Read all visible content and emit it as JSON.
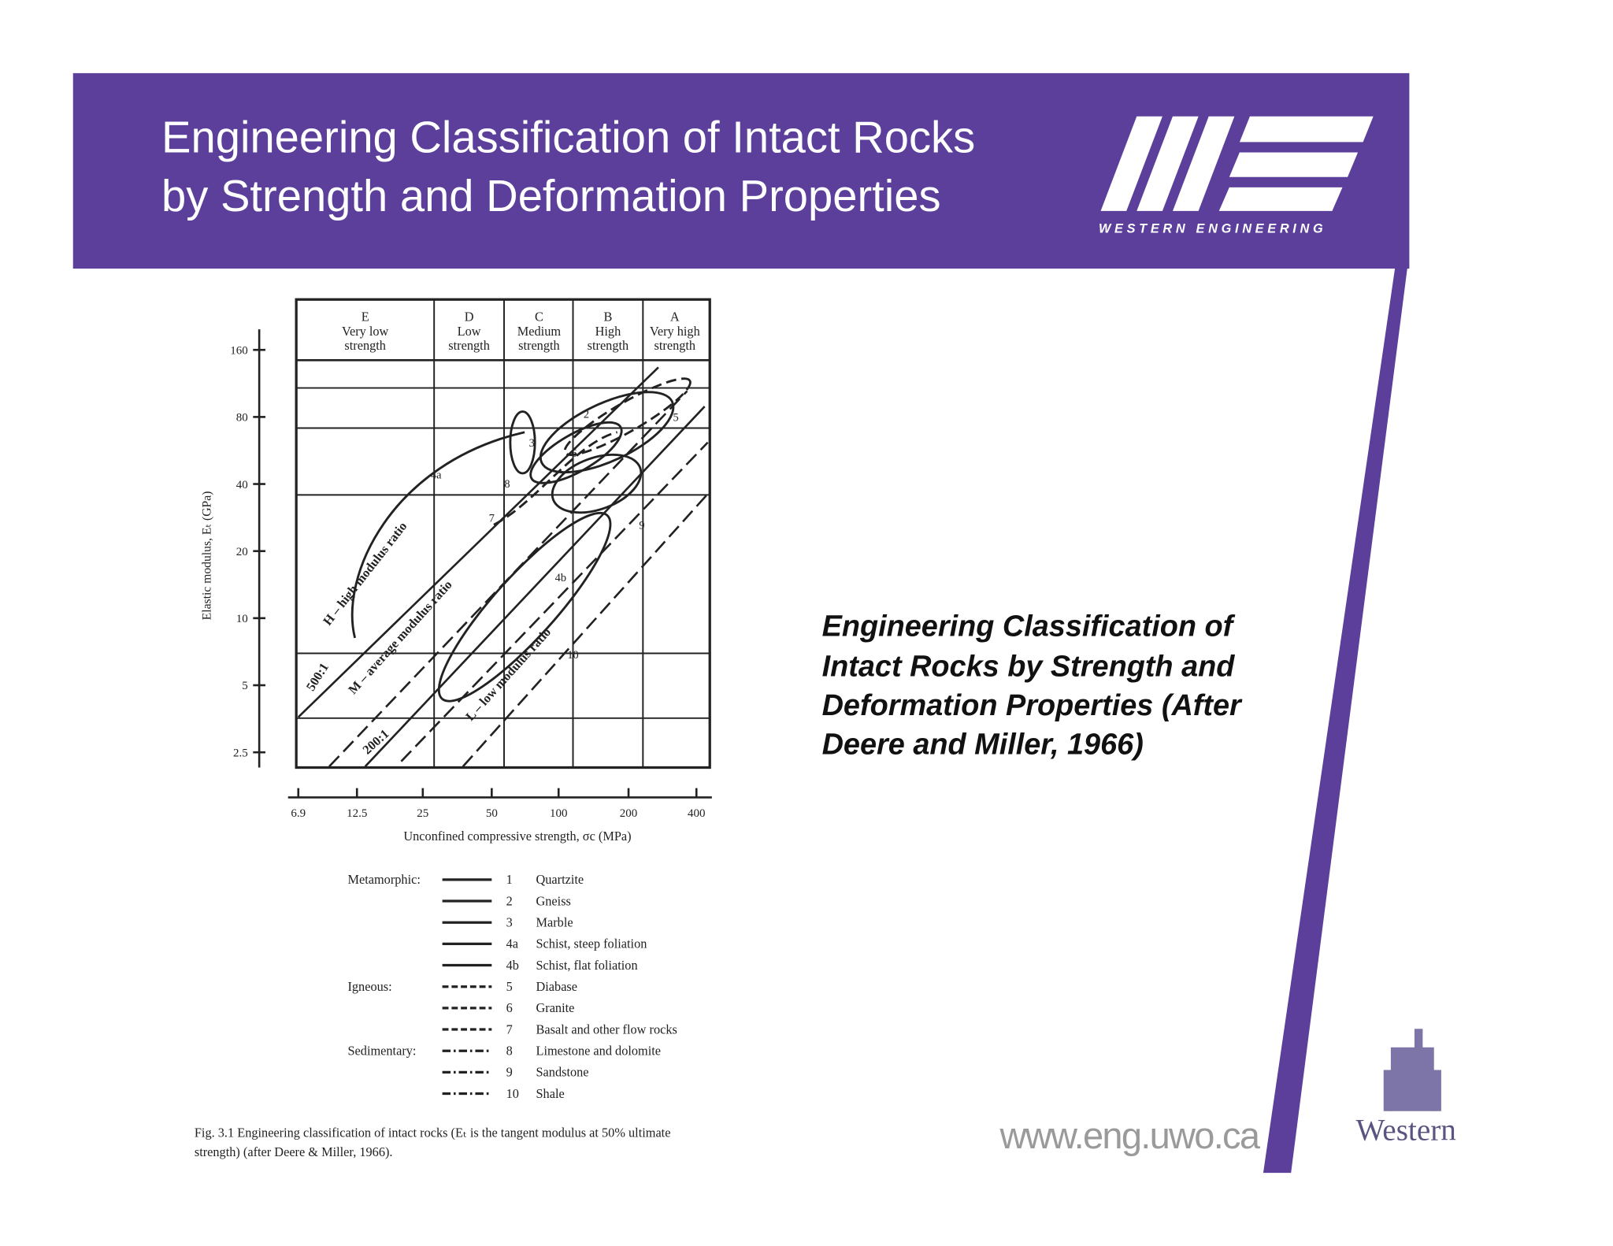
{
  "header": {
    "title": [
      "Engineering Classification of Intact Rocks",
      "by Strength and Deformation Properties"
    ],
    "logo_text": "WESTERN ENGINEERING"
  },
  "figure": {
    "classes": [
      [
        "E",
        "Very low",
        "strength"
      ],
      [
        "D",
        "Low",
        "strength"
      ],
      [
        "C",
        "Medium",
        "strength"
      ],
      [
        "B",
        "High",
        "strength"
      ],
      [
        "A",
        "Very high",
        "strength"
      ]
    ],
    "y_ticks": [
      "160",
      "80",
      "40",
      "20",
      "10",
      "5",
      "2.5"
    ],
    "y_label": "Elastic modulus, Eₜ (GPa)",
    "x_ticks": [
      "6.9",
      "12.5",
      "25",
      "50",
      "100",
      "200",
      "400"
    ],
    "x_label": "Unconfined compressive strength, σc (MPa)",
    "ratio_labels": [
      "H – high modulus ratio",
      "M – average modulus ratio",
      "L – low modulus ratio",
      "500:1",
      "200:1"
    ],
    "curve_labels": [
      "4a",
      "2",
      "3",
      "6",
      "5",
      "8",
      "7",
      "9",
      "4b",
      "10"
    ],
    "legend": [
      {
        "label": "Metamorphic:",
        "items": [
          [
            "1",
            "Quartzite"
          ],
          [
            "2",
            "Gneiss"
          ],
          [
            "3",
            "Marble"
          ],
          [
            "4a",
            "Schist, steep foliation"
          ],
          [
            "4b",
            "Schist, flat foliation"
          ]
        ]
      },
      {
        "label": "Igneous:",
        "items": [
          [
            "5",
            "Diabase"
          ],
          [
            "6",
            "Granite"
          ],
          [
            "7",
            "Basalt and other flow rocks"
          ]
        ]
      },
      {
        "label": "Sedimentary:",
        "items": [
          [
            "8",
            "Limestone and dolomite"
          ],
          [
            "9",
            "Sandstone"
          ],
          [
            "10",
            "Shale"
          ]
        ]
      }
    ],
    "caption": [
      "Fig. 3.1  Engineering classification of intact rocks (Eₜ is the tangent modulus at 50% ultimate",
      "strength) (after Deere & Miller, 1966)."
    ]
  },
  "side_text": [
    "Engineering Classification of",
    "Intact Rocks by Strength and",
    "Deformation Properties (After",
    "Deere and Miller, 1966)"
  ],
  "footer": {
    "url": "www.eng.uwo.ca",
    "university": "Western"
  }
}
